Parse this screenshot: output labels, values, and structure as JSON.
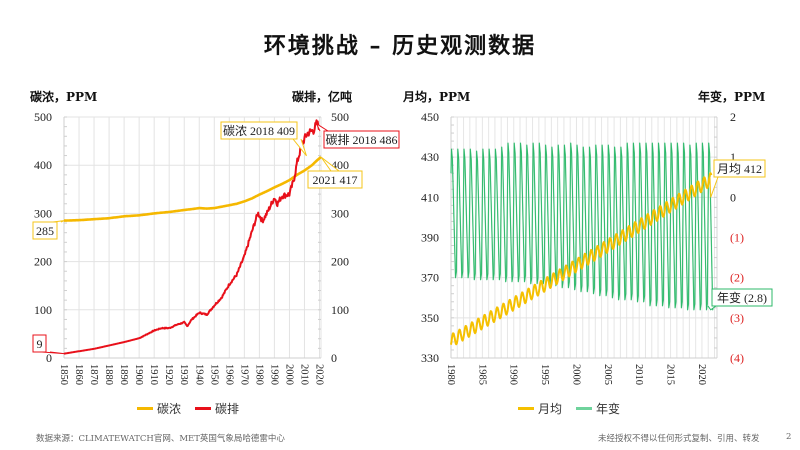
{
  "page": {
    "title": "环境挑战 – 历史观测数据",
    "source": "数据来源：CLIMATEWATCH官网、MET英国气象局哈德雷中心",
    "copyright": "未经授权不得以任何形式复制、引用、转发",
    "page_number": "2"
  },
  "colors": {
    "concentration": "#f5b800",
    "emissions": "#e8101a",
    "monthly": "#f5c000",
    "annual_change": "#2db86a",
    "negative_tick": "#dd2222"
  },
  "chart_data": [
    {
      "type": "line",
      "title": "",
      "ylabel_left": "碳浓，PPM",
      "ylabel_right": "碳排，亿吨",
      "x_ticks": [
        "1850",
        "1860",
        "1870",
        "1880",
        "1890",
        "1900",
        "1910",
        "1920",
        "1930",
        "1940",
        "1950",
        "1960",
        "1970",
        "1980",
        "1990",
        "2000",
        "2010",
        "2020"
      ],
      "xlim": [
        1850,
        2021
      ],
      "ylim_left": [
        0,
        500
      ],
      "ylim_right": [
        0,
        500
      ],
      "y_ticks_left": [
        "0",
        "100",
        "200",
        "300",
        "400",
        "500"
      ],
      "y_ticks_right": [
        "0",
        "100",
        "200",
        "300",
        "400",
        "500"
      ],
      "grid": true,
      "legend_position": "bottom",
      "series": [
        {
          "name": "碳浓",
          "axis": "left",
          "x": [
            1850,
            1860,
            1870,
            1880,
            1890,
            1900,
            1910,
            1920,
            1930,
            1940,
            1945,
            1950,
            1955,
            1960,
            1965,
            1970,
            1975,
            1980,
            1985,
            1990,
            1995,
            2000,
            2005,
            2010,
            2015,
            2018,
            2021
          ],
          "values": [
            285,
            286,
            288,
            290,
            294,
            296,
            300,
            303,
            307,
            311,
            310,
            311,
            314,
            317,
            320,
            325,
            331,
            339,
            346,
            354,
            361,
            369,
            380,
            389,
            400,
            409,
            417
          ]
        },
        {
          "name": "碳排",
          "axis": "right",
          "x": [
            1850,
            1860,
            1870,
            1880,
            1890,
            1900,
            1910,
            1915,
            1920,
            1925,
            1930,
            1932,
            1935,
            1940,
            1945,
            1950,
            1955,
            1960,
            1965,
            1970,
            1975,
            1979,
            1982,
            1985,
            1990,
            1992,
            1995,
            2000,
            2003,
            2005,
            2008,
            2010,
            2012,
            2014,
            2016,
            2018,
            2019,
            2020
          ],
          "values": [
            9,
            14,
            19,
            26,
            33,
            41,
            57,
            62,
            62,
            69,
            74,
            66,
            80,
            94,
            90,
            109,
            126,
            153,
            173,
            211,
            262,
            301,
            284,
            300,
            333,
            320,
            336,
            340,
            370,
            405,
            440,
            455,
            466,
            470,
            472,
            486,
            484,
            478
          ]
        }
      ],
      "annotations": [
        {
          "text": "285",
          "series": "碳浓",
          "x": 1850,
          "y": 285
        },
        {
          "text": "9",
          "series": "碳排",
          "x": 1850,
          "y": 9
        },
        {
          "text": "碳浓 2018 409",
          "series": "碳浓",
          "x": 2018,
          "y": 409
        },
        {
          "text": "碳排 2018 486",
          "series": "碳排",
          "x": 2018,
          "y": 486
        },
        {
          "text": "2021 417",
          "series": "碳浓",
          "x": 2021,
          "y": 417
        }
      ]
    },
    {
      "type": "line",
      "title": "",
      "ylabel_left": "月均，PPM",
      "ylabel_right": "年变，PPM",
      "x_ticks": [
        "1980",
        "1985",
        "1990",
        "1995",
        "2000",
        "2005",
        "2010",
        "2015",
        "2020"
      ],
      "xlim": [
        1980,
        2022
      ],
      "ylim_left": [
        330,
        450
      ],
      "ylim_right": [
        -4,
        2
      ],
      "y_ticks_left": [
        "330",
        "350",
        "370",
        "390",
        "410",
        "430",
        "450"
      ],
      "y_ticks_right": [
        "(4)",
        "(3)",
        "(2)",
        "(1)",
        "0",
        "1",
        "2"
      ],
      "grid": true,
      "legend_position": "bottom",
      "series": [
        {
          "name": "月均",
          "axis": "left",
          "x_start": 1980,
          "x_end": 2021.5,
          "trend_start": 338.5,
          "trend_end": 414,
          "seasonal_amplitude_ppm": 3.2
        },
        {
          "name": "年变",
          "axis": "right",
          "x_start": 1980,
          "x_end": 2021.5,
          "cycle_high": [
            1.2,
            1.2,
            1.2,
            1.2,
            1.15,
            1.2,
            1.2,
            1.2,
            1.25,
            1.35,
            1.35,
            1.35,
            1.3,
            1.35,
            1.35,
            1.3,
            1.25,
            1.3,
            1.3,
            1.35,
            1.3,
            1.25,
            1.25,
            1.3,
            1.3,
            1.3,
            1.25,
            1.25,
            1.35,
            1.35,
            1.35,
            1.35,
            1.35,
            1.35,
            1.35,
            1.35,
            1.35,
            1.35,
            1.3,
            1.35,
            1.35,
            1.35
          ],
          "cycle_low": [
            -2.0,
            -2.0,
            -2.0,
            -2.05,
            -2.05,
            -2.05,
            -2.05,
            -2.05,
            -2.1,
            -2.1,
            -2.1,
            -2.1,
            -2.15,
            -2.15,
            -2.15,
            -2.2,
            -2.2,
            -2.25,
            -2.25,
            -2.3,
            -2.35,
            -2.35,
            -2.4,
            -2.45,
            -2.45,
            -2.5,
            -2.55,
            -2.55,
            -2.55,
            -2.6,
            -2.6,
            -2.7,
            -2.7,
            -2.7,
            -2.75,
            -2.75,
            -2.75,
            -2.8,
            -2.8,
            -2.8,
            -2.8,
            -2.8
          ]
        }
      ],
      "annotations": [
        {
          "text": "月均 412",
          "series": "月均",
          "x": 2021.3,
          "y": 412
        },
        {
          "text": "年变 (2.8)",
          "series": "年变",
          "x": 2021.4,
          "y": -2.8
        }
      ]
    }
  ],
  "left_chart": {
    "ylabel_left": "碳浓，PPM",
    "ylabel_right": "碳排，亿吨",
    "legend": [
      {
        "label": "碳浓",
        "color": "#f5b800"
      },
      {
        "label": "碳排",
        "color": "#e8101a"
      }
    ]
  },
  "right_chart": {
    "ylabel_left": "月均，PPM",
    "ylabel_right": "年变，PPM",
    "legend": [
      {
        "label": "月均",
        "color": "#f5c000"
      },
      {
        "label": "年变",
        "color": "#6fd39c"
      }
    ]
  }
}
